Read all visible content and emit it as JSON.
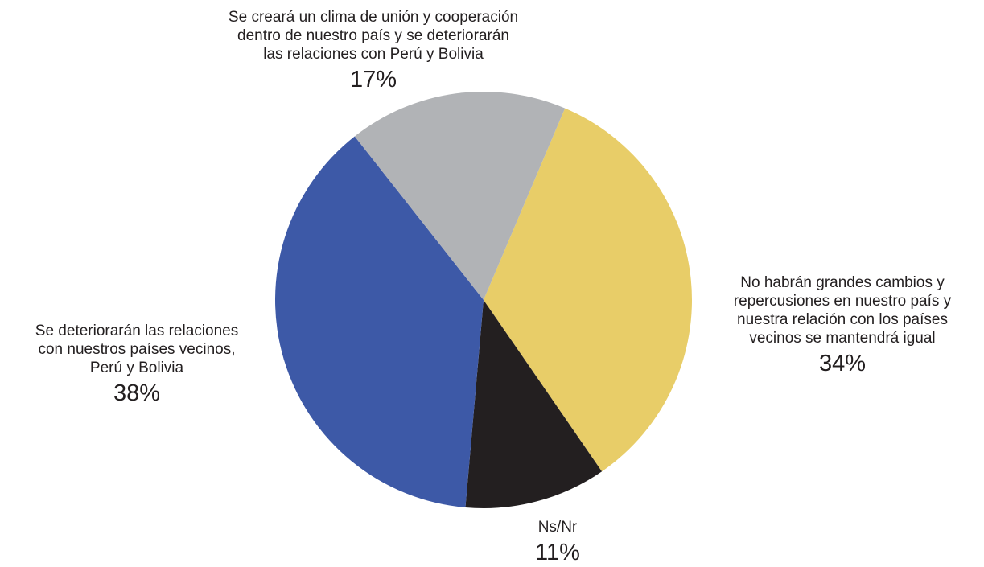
{
  "chart_data": {
    "type": "pie",
    "slices": [
      {
        "label_lines": [
          "No habrán grandes cambios y",
          "repercusiones en nuestro país y",
          "nuestra relación con los países",
          "vecinos se mantendrá igual"
        ],
        "value": 34,
        "percent_label": "34%",
        "color": "#e8cd68"
      },
      {
        "label_lines": [
          "Ns/Nr"
        ],
        "value": 11,
        "percent_label": "11%",
        "color": "#231f20"
      },
      {
        "label_lines": [
          "Se deteriorarán las relaciones",
          "con nuestros países vecinos,",
          "Perú y Bolivia"
        ],
        "value": 38,
        "percent_label": "38%",
        "color": "#3d59a7"
      },
      {
        "label_lines": [
          "Se creará un clima de unión y cooperación",
          "dentro de nuestro país y se deteriorarán",
          "las relaciones con Perú y Bolivia"
        ],
        "value": 17,
        "percent_label": "17%",
        "color": "#b1b3b6"
      }
    ],
    "start_angle_deg": 23,
    "direction": "clockwise"
  }
}
